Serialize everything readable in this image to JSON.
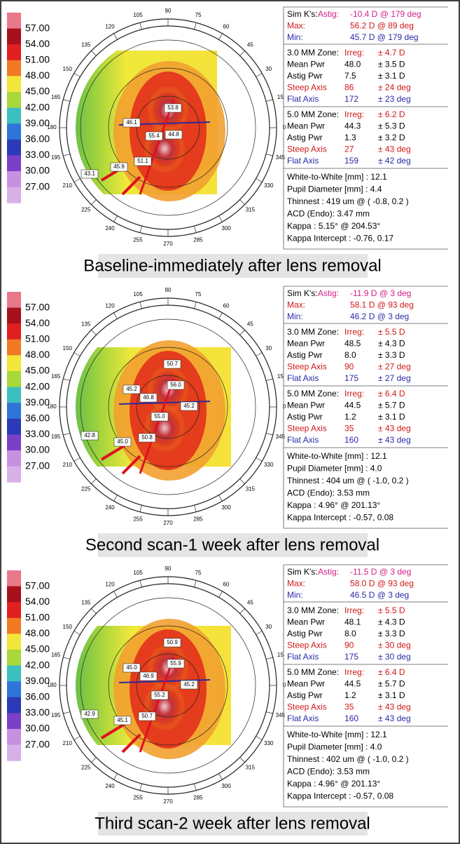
{
  "color_scale": [
    "57.00",
    "54.00",
    "51.00",
    "48.00",
    "45.00",
    "42.00",
    "39.00",
    "36.00",
    "33.00",
    "30.00",
    "27.00"
  ],
  "compass": [
    "0",
    "15",
    "30",
    "45",
    "60",
    "75",
    "90",
    "105",
    "120",
    "135",
    "150",
    "165",
    "180",
    "195",
    "210",
    "225",
    "240",
    "255",
    "270",
    "285",
    "300",
    "315",
    "330",
    "345"
  ],
  "panels": [
    {
      "map_labels": [
        "53.8",
        "46.1",
        "55.4",
        "44.8",
        "51.1",
        "45.9",
        "43.1"
      ],
      "sim_k": [
        [
          "Sim K's:",
          "Astig:",
          "-10.4 D @ 179 deg"
        ],
        [
          "Max:",
          "56.2 D @ 89 deg"
        ],
        [
          "Min:",
          "45.7 D @ 179 deg"
        ]
      ],
      "zone3": [
        [
          "3.0 MM Zone:",
          "Irreg:",
          "± 4.7 D"
        ],
        [
          "Mean Pwr",
          "48.0",
          "± 3.5 D"
        ],
        [
          "Astig Pwr",
          "7.5",
          "± 3.1 D"
        ],
        [
          "Steep Axis",
          "86",
          "± 24 deg"
        ],
        [
          "Flat Axis",
          "172",
          "± 23 deg"
        ]
      ],
      "zone5": [
        [
          "5.0 MM Zone:",
          "Irreg:",
          "± 6.2 D"
        ],
        [
          "Mean Pwr",
          "44.3",
          "± 5.3 D"
        ],
        [
          "Astig Pwr",
          "1.3",
          "± 3.2 D"
        ],
        [
          "Steep Axis",
          "27",
          "± 43 deg"
        ],
        [
          "Flat Axis",
          "159",
          "± 42 deg"
        ]
      ],
      "info": [
        "White-to-White [mm] : 12.1",
        "Pupil Diameter [mm] : 4.4",
        "Thinnest : 419 um @ ( -0.8, 0.2 )",
        "ACD (Endo): 3.47 mm",
        "Kappa : 5.15° @ 204.53°",
        "Kappa Intercept : -0.76, 0.17"
      ],
      "caption": "Baseline-immediately after lens removal"
    },
    {
      "map_labels": [
        "50.7",
        "56.0",
        "45.2",
        "46.8",
        "45.2",
        "55.0",
        "50.8",
        "45.0",
        "42.8"
      ],
      "sim_k": [
        [
          "Sim K's:",
          "Astig:",
          "-11.9 D @ 3 deg"
        ],
        [
          "Max:",
          "58.1 D @ 93 deg"
        ],
        [
          "Min:",
          "46.2 D @ 3 deg"
        ]
      ],
      "zone3": [
        [
          "3.0 MM Zone:",
          "Irreg:",
          "± 5.5 D"
        ],
        [
          "Mean Pwr",
          "48.5",
          "± 4.3 D"
        ],
        [
          "Astig Pwr",
          "8.0",
          "± 3.3 D"
        ],
        [
          "Steep Axis",
          "90",
          "± 27 deg"
        ],
        [
          "Flat Axis",
          "175",
          "± 27 deg"
        ]
      ],
      "zone5": [
        [
          "5.0 MM Zone:",
          "Irreg:",
          "± 6.4 D"
        ],
        [
          "Mean Pwr",
          "44.5",
          "± 5.7 D"
        ],
        [
          "Astig Pwr",
          "1.2",
          "± 3.1 D"
        ],
        [
          "Steep Axis",
          "35",
          "± 43 deg"
        ],
        [
          "Flat Axis",
          "160",
          "± 43 deg"
        ]
      ],
      "info": [
        "White-to-White [mm] : 12.1",
        "Pupil Diameter [mm] : 4.0",
        "Thinnest : 404 um @ ( -1.0, 0.2 )",
        "ACD (Endo): 3.53 mm",
        "Kappa : 4.96° @ 201.13°",
        "Kappa Intercept : -0.57, 0.08"
      ],
      "caption": "Second scan-1 week after lens removal"
    },
    {
      "map_labels": [
        "50.9",
        "55.9",
        "45.0",
        "46.9",
        "45.2",
        "55.2",
        "50.7",
        "45.1",
        "42.9"
      ],
      "sim_k": [
        [
          "Sim K's:",
          "Astig:",
          "-11.5 D @ 3 deg"
        ],
        [
          "Max:",
          "58.0 D @ 93 deg"
        ],
        [
          "Min:",
          "46.5 D @ 3 deg"
        ]
      ],
      "zone3": [
        [
          "3.0 MM Zone:",
          "Irreg:",
          "± 5.5 D"
        ],
        [
          "Mean Pwr",
          "48.1",
          "± 4.3 D"
        ],
        [
          "Astig Pwr",
          "8.0",
          "± 3.3 D"
        ],
        [
          "Steep Axis",
          "90",
          "± 30 deg"
        ],
        [
          "Flat Axis",
          "175",
          "± 30 deg"
        ]
      ],
      "zone5": [
        [
          "5.0 MM Zone:",
          "Irreg:",
          "± 6.4 D"
        ],
        [
          "Mean Pwr",
          "44.5",
          "± 5.7 D"
        ],
        [
          "Astig Pwr",
          "1.2",
          "± 3.1 D"
        ],
        [
          "Steep Axis",
          "35",
          "± 43 deg"
        ],
        [
          "Flat Axis",
          "160",
          "± 43 deg"
        ]
      ],
      "info": [
        "White-to-White [mm] : 12.1",
        "Pupil Diameter [mm] : 4.0",
        "Thinnest : 402 um @ ( -1.0, 0.2 )",
        "ACD (Endo): 3.53 mm",
        "Kappa : 4.96° @ 201.13°",
        "Kappa Intercept : -0.57, 0.08"
      ],
      "caption": "Third scan-2 week after lens removal"
    }
  ]
}
